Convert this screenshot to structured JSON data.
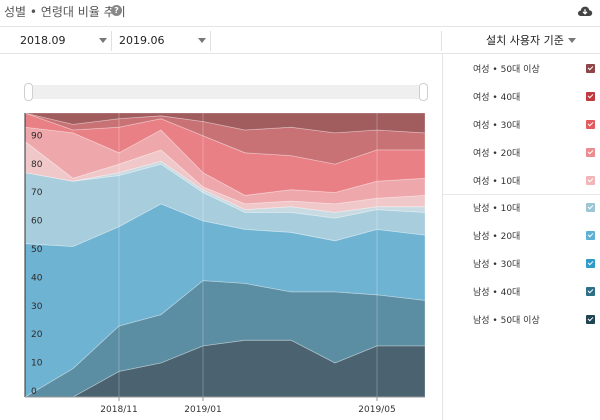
{
  "header": {
    "title": "성별 • 연령대 비율 추이",
    "help_icon": "help-icon",
    "download_icon": "cloud-download-icon"
  },
  "filters": {
    "start_date": "2018.09",
    "end_date": "2019.06",
    "basis": "설치 사용자 기준"
  },
  "chart_data": {
    "type": "area",
    "stacked": true,
    "y_ticks": [
      "0",
      "10",
      "20",
      "30",
      "40",
      "50",
      "60",
      "70",
      "80",
      "90"
    ],
    "ylim": [
      0,
      100
    ],
    "x_tick_labels": [
      {
        "label": "2018/11",
        "t": 0.235
      },
      {
        "label": "2019/01",
        "t": 0.445
      },
      {
        "label": "2019/05",
        "t": 0.88
      }
    ],
    "x": [
      0,
      0.12,
      0.235,
      0.34,
      0.445,
      0.55,
      0.665,
      0.775,
      0.88,
      1
    ],
    "series": [
      {
        "name": "남성 • 50대 이상",
        "color": "#4b6371",
        "values": [
          0,
          0,
          9,
          12,
          18,
          20,
          20,
          12,
          18,
          18
        ]
      },
      {
        "name": "남성 • 40대",
        "color": "#5b8ea3",
        "values": [
          0,
          10,
          16,
          17,
          23,
          20,
          17,
          25,
          18,
          16
        ]
      },
      {
        "name": "남성 • 30대",
        "color": "#6fb3d2",
        "values": [
          54,
          43,
          35,
          39,
          21,
          19,
          21,
          18,
          23,
          23
        ]
      },
      {
        "name": "남성 • 20대",
        "color": "#a8cede",
        "values": [
          25,
          23,
          18,
          14,
          10,
          6,
          7,
          8,
          7,
          8
        ]
      },
      {
        "name": "남성 • 10대",
        "color": "#c9dbe2",
        "values": [
          0,
          0,
          1,
          1,
          1,
          1,
          2,
          2,
          1,
          2
        ]
      },
      {
        "name": "여성 • 10대",
        "color": "#f1c8ca",
        "values": [
          11,
          1,
          3,
          4,
          1,
          2,
          2,
          3,
          3,
          4
        ]
      },
      {
        "name": "여성 • 20대",
        "color": "#eea7ab",
        "values": [
          5,
          16,
          4,
          7,
          5,
          3,
          4,
          4,
          6,
          6
        ]
      },
      {
        "name": "여성 • 30대",
        "color": "#e98086",
        "values": [
          5,
          1,
          9,
          4,
          13,
          15,
          12,
          10,
          11,
          10
        ]
      },
      {
        "name": "여성 • 40대",
        "color": "#c87275",
        "values": [
          0,
          2,
          3,
          1,
          5,
          8,
          10,
          11,
          7,
          6
        ]
      },
      {
        "name": "여성 • 50대 이상",
        "color": "#a15c5e",
        "values": [
          0,
          4,
          2,
          1,
          3,
          6,
          5,
          7,
          6,
          7
        ]
      }
    ]
  },
  "legend": {
    "female": [
      {
        "label": "여성 • 50대 이상",
        "color": "#8e4548"
      },
      {
        "label": "여성 • 40대",
        "color": "#c0393f"
      },
      {
        "label": "여성 • 30대",
        "color": "#e35a60"
      },
      {
        "label": "여성 • 20대",
        "color": "#eb8c90"
      },
      {
        "label": "여성 • 10대",
        "color": "#f2b6b8"
      }
    ],
    "male": [
      {
        "label": "남성 • 10대",
        "color": "#9cc6d6"
      },
      {
        "label": "남성 • 20대",
        "color": "#5fb1d3"
      },
      {
        "label": "남성 • 30대",
        "color": "#2f9bc9"
      },
      {
        "label": "남성 • 40대",
        "color": "#2e6f88"
      },
      {
        "label": "남성 • 50대 이상",
        "color": "#1f4554"
      }
    ]
  }
}
